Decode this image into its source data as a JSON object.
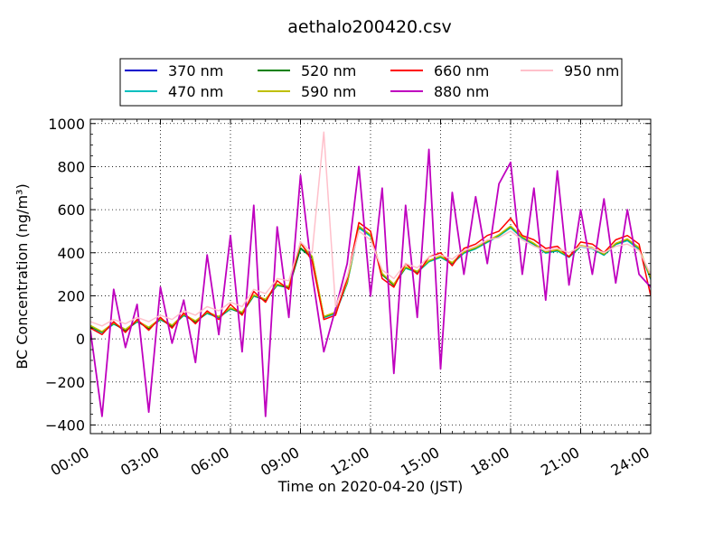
{
  "chart_data": {
    "type": "line",
    "title": "aethalo200420.csv",
    "xlabel": "Time on 2020-04-20 (JST)",
    "ylabel": "BC Concentration (ng/m³)",
    "x_unit": "hours",
    "xlim": [
      0,
      24
    ],
    "ylim": [
      -440,
      1020
    ],
    "x_ticks": [
      0,
      3,
      6,
      9,
      12,
      15,
      18,
      21,
      24
    ],
    "x_tick_labels": [
      "00:00",
      "03:00",
      "06:00",
      "09:00",
      "12:00",
      "15:00",
      "18:00",
      "21:00",
      "24:00"
    ],
    "y_ticks": [
      -400,
      -200,
      0,
      200,
      400,
      600,
      800,
      1000
    ],
    "y_tick_labels": [
      "−400",
      "−200",
      "0",
      "200",
      "400",
      "600",
      "800",
      "1000"
    ],
    "grid": true,
    "legend_position": "top",
    "x": [
      0.0,
      0.5,
      1.0,
      1.5,
      2.0,
      2.5,
      3.0,
      3.5,
      4.0,
      4.5,
      5.0,
      5.5,
      6.0,
      6.5,
      7.0,
      7.5,
      8.0,
      8.5,
      9.0,
      9.5,
      10.0,
      10.5,
      11.0,
      11.5,
      12.0,
      12.5,
      13.0,
      13.5,
      14.0,
      14.5,
      15.0,
      15.5,
      16.0,
      16.5,
      17.0,
      17.5,
      18.0,
      18.5,
      19.0,
      19.5,
      20.0,
      20.5,
      21.0,
      21.5,
      22.0,
      22.5,
      23.0,
      23.5,
      24.0
    ],
    "series": [
      {
        "name": "370 nm",
        "color": "#0000cc",
        "values": [
          60,
          30,
          70,
          40,
          80,
          50,
          90,
          60,
          110,
          80,
          120,
          100,
          140,
          120,
          200,
          180,
          250,
          240,
          420,
          380,
          100,
          120,
          260,
          520,
          480,
          300,
          250,
          330,
          310,
          360,
          380,
          350,
          400,
          420,
          450,
          480,
          520,
          470,
          440,
          400,
          410,
          380,
          430,
          420,
          390,
          440,
          460,
          420,
          280
        ]
      },
      {
        "name": "470 nm",
        "color": "#00bfbf",
        "values": [
          55,
          28,
          68,
          42,
          78,
          52,
          88,
          62,
          108,
          82,
          118,
          98,
          138,
          122,
          198,
          182,
          248,
          238,
          418,
          378,
          98,
          118,
          258,
          515,
          476,
          302,
          252,
          328,
          308,
          358,
          378,
          348,
          398,
          418,
          448,
          478,
          516,
          468,
          438,
          398,
          408,
          378,
          428,
          418,
          388,
          438,
          456,
          416,
          276
        ]
      },
      {
        "name": "520 nm",
        "color": "#008000",
        "values": [
          58,
          32,
          72,
          38,
          82,
          48,
          92,
          58,
          112,
          78,
          122,
          102,
          142,
          118,
          202,
          178,
          252,
          236,
          422,
          376,
          102,
          122,
          262,
          522,
          482,
          298,
          248,
          332,
          312,
          362,
          382,
          352,
          402,
          422,
          452,
          482,
          522,
          472,
          442,
          402,
          412,
          382,
          432,
          422,
          392,
          442,
          462,
          422,
          282
        ]
      },
      {
        "name": "590 nm",
        "color": "#bfbf00",
        "values": [
          62,
          34,
          74,
          44,
          84,
          54,
          94,
          64,
          114,
          84,
          124,
          104,
          144,
          124,
          204,
          184,
          254,
          244,
          440,
          384,
          104,
          124,
          264,
          524,
          484,
          304,
          254,
          334,
          314,
          364,
          384,
          354,
          404,
          424,
          454,
          484,
          524,
          474,
          444,
          404,
          414,
          384,
          434,
          424,
          394,
          444,
          464,
          424,
          284
        ]
      },
      {
        "name": "660 nm",
        "color": "#ff0000",
        "values": [
          50,
          20,
          80,
          30,
          90,
          40,
          100,
          50,
          120,
          70,
          130,
          90,
          160,
          110,
          220,
          170,
          270,
          230,
          450,
          360,
          90,
          110,
          280,
          540,
          500,
          280,
          240,
          350,
          300,
          380,
          400,
          340,
          420,
          440,
          480,
          500,
          560,
          480,
          460,
          420,
          430,
          380,
          450,
          440,
          400,
          460,
          480,
          440,
          200
        ]
      },
      {
        "name": "880 nm",
        "color": "#bf00bf",
        "values": [
          40,
          -360,
          230,
          -40,
          160,
          -340,
          240,
          -20,
          180,
          -110,
          390,
          20,
          480,
          -60,
          620,
          -360,
          520,
          100,
          760,
          300,
          -60,
          140,
          350,
          800,
          200,
          700,
          -160,
          620,
          100,
          880,
          -140,
          680,
          300,
          660,
          350,
          720,
          820,
          300,
          700,
          180,
          780,
          250,
          600,
          300,
          650,
          260,
          600,
          300,
          240
        ]
      },
      {
        "name": "950 nm",
        "color": "#ffc0cb",
        "values": [
          80,
          60,
          90,
          70,
          100,
          80,
          110,
          90,
          130,
          110,
          150,
          130,
          170,
          150,
          230,
          210,
          280,
          270,
          450,
          400,
          960,
          150,
          290,
          500,
          460,
          320,
          280,
          350,
          330,
          380,
          390,
          370,
          410,
          430,
          460,
          470,
          500,
          460,
          430,
          410,
          420,
          400,
          430,
          420,
          400,
          430,
          440,
          410,
          300
        ]
      }
    ]
  }
}
